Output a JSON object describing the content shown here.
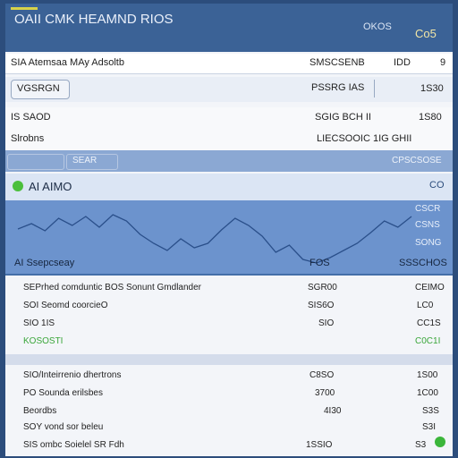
{
  "titlebar": {
    "app_name": "OAII CMK HEAMND RIOS",
    "status": "OKOS",
    "badge": "Co5"
  },
  "header_row": {
    "left": "SIA Atemsaa MAy Adsoltb",
    "mid": "SMSCSENB",
    "col2": "IDD",
    "col3": "9"
  },
  "select_row": {
    "left_value": "VGSRGN",
    "mid_value": "PSSRG IAS",
    "right_value": "1S30"
  },
  "amount_row": {
    "left": "IS SAOD",
    "mid": "SGIG BCH II",
    "right": "1S80"
  },
  "balance_row": {
    "left": "Slrobns",
    "mid": "LIECSOOIC 1IG GHII"
  },
  "band": {
    "tab1": "",
    "tab2": "SEAR",
    "right": "CPSCSOSE"
  },
  "chart": {
    "title": "AI AIMO",
    "right_label": "CO",
    "right_labels": [
      "CSCR",
      "CSNS",
      "SONG"
    ],
    "footer_left": "AI Ssepcseay",
    "footer_mid": "FOS",
    "footer_right": "SSSCHOS"
  },
  "chart_data": {
    "type": "line",
    "series": [
      {
        "values": [
          46,
          52,
          44,
          58,
          50,
          60,
          48,
          62,
          55,
          40,
          30,
          22,
          35,
          25,
          30,
          45,
          58,
          50,
          38,
          20,
          28,
          12,
          8,
          14,
          22,
          30,
          42,
          55,
          48,
          60
        ]
      }
    ],
    "ylim": [
      0,
      80
    ]
  },
  "table": {
    "rows": [
      {
        "label": "SEPrhed comduntic BOS Sonunt Gmdlander",
        "mid": "SGR00",
        "right": "CEIMO"
      },
      {
        "label": "SOI Seomd coorcieO",
        "mid": "SIS6O",
        "right": "LC0"
      },
      {
        "label": "SIO 1IS",
        "mid": "SIO",
        "right": "CC1S"
      },
      {
        "label": "KOSOSTI",
        "mid": "",
        "right": "C0C1I"
      },
      {
        "label": "SIO/Inteirrenio dhertrons",
        "mid": "C8SO",
        "right": "1S00"
      },
      {
        "label": "PO Sounda erilsbes",
        "mid": "3700",
        "right": "1C00"
      },
      {
        "label": "Beordbs",
        "mid": "4I30",
        "right": "S3S"
      },
      {
        "label": "SOY vond sor beleu",
        "mid": "",
        "right": "S3I"
      },
      {
        "label": "SIS ombc Soielel SR Fdh",
        "mid": "1SSIO",
        "right": "S3"
      }
    ]
  },
  "colors": {
    "accent": "#3b6296",
    "band": "#8ba8d3",
    "chart_bg": "#6c93cd",
    "green": "#3bb63b"
  }
}
